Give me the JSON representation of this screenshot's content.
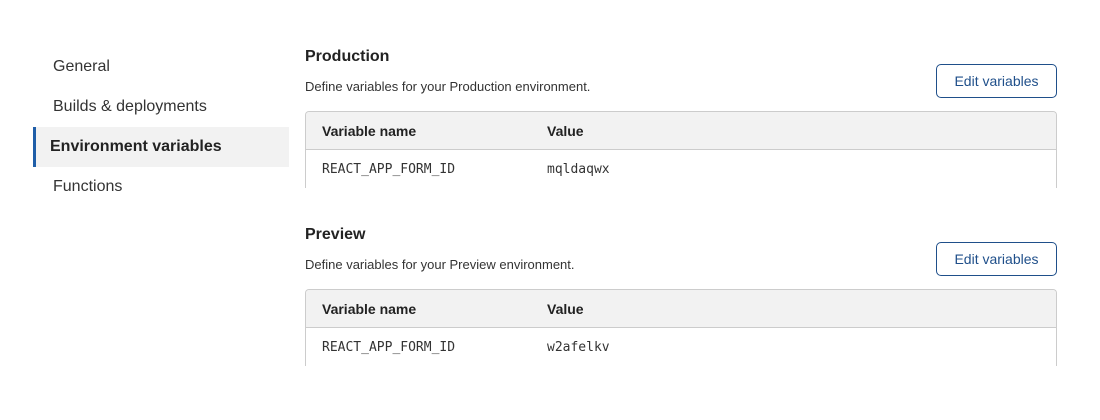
{
  "sidebar": {
    "items": [
      {
        "label": "General"
      },
      {
        "label": "Builds & deployments"
      },
      {
        "label": "Environment variables",
        "active": true
      },
      {
        "label": "Functions"
      }
    ]
  },
  "colors": {
    "accent": "#1f5ea8"
  },
  "sections": [
    {
      "title": "Production",
      "description": "Define variables for your Production environment.",
      "button": "Edit variables",
      "columns": [
        "Variable name",
        "Value"
      ],
      "rows": [
        [
          "REACT_APP_FORM_ID",
          "mqldaqwx"
        ]
      ]
    },
    {
      "title": "Preview",
      "description": "Define variables for your Preview environment.",
      "button": "Edit variables",
      "columns": [
        "Variable name",
        "Value"
      ],
      "rows": [
        [
          "REACT_APP_FORM_ID",
          "w2afelkv"
        ]
      ]
    }
  ]
}
